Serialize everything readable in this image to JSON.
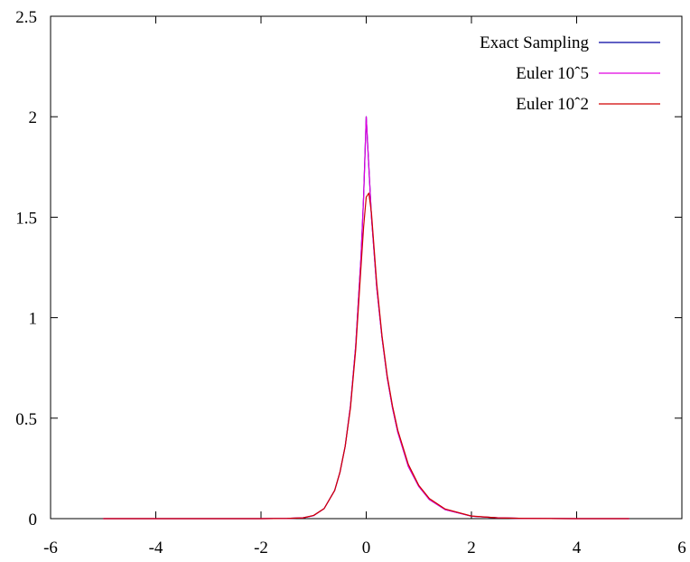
{
  "chart_data": {
    "type": "line",
    "title": "",
    "xlabel": "",
    "ylabel": "",
    "xlim": [
      -6,
      6
    ],
    "ylim": [
      0,
      2.5
    ],
    "x_ticks": [
      "-6",
      "-4",
      "-2",
      "0",
      "2",
      "4",
      "6"
    ],
    "y_ticks": [
      "0",
      "0.5",
      "1",
      "1.5",
      "2",
      "2.5"
    ],
    "grid": false,
    "legend_position": "top-right",
    "x": [
      -5,
      -4,
      -3,
      -2,
      -1.5,
      -1.2,
      -1.0,
      -0.8,
      -0.6,
      -0.5,
      -0.4,
      -0.3,
      -0.2,
      -0.1,
      -0.05,
      0,
      0.05,
      0.1,
      0.2,
      0.3,
      0.4,
      0.5,
      0.6,
      0.8,
      1.0,
      1.2,
      1.5,
      2,
      2.5,
      3,
      4,
      5
    ],
    "series": [
      {
        "name": "Exact Sampling",
        "color": "#0000a0",
        "values": [
          0,
          0,
          0,
          0,
          0.001,
          0.004,
          0.015,
          0.05,
          0.14,
          0.23,
          0.36,
          0.56,
          0.86,
          1.3,
          1.6,
          2.0,
          1.75,
          1.5,
          1.15,
          0.9,
          0.7,
          0.55,
          0.43,
          0.26,
          0.16,
          0.095,
          0.045,
          0.012,
          0.004,
          0.001,
          0,
          0
        ]
      },
      {
        "name": "Euler 10ˆ5",
        "color": "#e000e0",
        "values": [
          0,
          0,
          0,
          0,
          0.001,
          0.004,
          0.015,
          0.05,
          0.14,
          0.23,
          0.36,
          0.56,
          0.86,
          1.3,
          1.6,
          2.0,
          1.75,
          1.5,
          1.15,
          0.9,
          0.7,
          0.55,
          0.43,
          0.26,
          0.16,
          0.095,
          0.045,
          0.012,
          0.004,
          0.001,
          0,
          0
        ]
      },
      {
        "name": "Euler 10ˆ2",
        "color": "#d00000",
        "values": [
          0,
          0,
          0,
          0,
          0.001,
          0.004,
          0.016,
          0.05,
          0.14,
          0.23,
          0.36,
          0.55,
          0.84,
          1.25,
          1.45,
          1.6,
          1.62,
          1.52,
          1.17,
          0.91,
          0.71,
          0.56,
          0.44,
          0.27,
          0.165,
          0.1,
          0.048,
          0.013,
          0.004,
          0.001,
          0,
          0
        ]
      }
    ]
  }
}
